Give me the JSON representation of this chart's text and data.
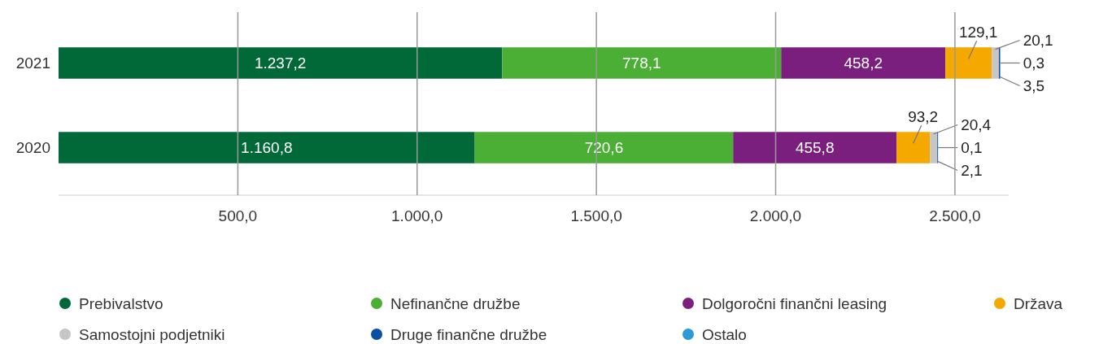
{
  "chart_data": {
    "type": "bar",
    "orientation": "horizontal",
    "stacked": true,
    "categories": [
      "2021",
      "2020"
    ],
    "series": [
      {
        "name": "Prebivalstvo",
        "color": "#006937",
        "values": [
          1237.2,
          1160.8
        ],
        "value_labels": [
          "1.237,2",
          "1.160,8"
        ]
      },
      {
        "name": "Nefinančne družbe",
        "color": "#4caf35",
        "values": [
          778.1,
          720.6
        ],
        "value_labels": [
          "778,1",
          "720,6"
        ]
      },
      {
        "name": "Dolgoročni finančni leasing",
        "color": "#7b1f7f",
        "values": [
          458.2,
          455.8
        ],
        "value_labels": [
          "458,2",
          "455,8"
        ]
      },
      {
        "name": "Država",
        "color": "#f5a800",
        "values": [
          129.1,
          93.2
        ],
        "value_labels": [
          "129,1",
          "93,2"
        ]
      },
      {
        "name": "Samostojni podjetniki",
        "color": "#c6c6c6",
        "values": [
          20.1,
          20.4
        ],
        "value_labels": [
          "20,1",
          "20,4"
        ]
      },
      {
        "name": "Druge finančne družbe",
        "color": "#0b4ea2",
        "values": [
          3.5,
          2.1
        ],
        "value_labels": [
          "3,5",
          "2,1"
        ]
      },
      {
        "name": "Ostalo",
        "color": "#2a9ad8",
        "values": [
          0.3,
          0.1
        ],
        "value_labels": [
          "0,3",
          "0,1"
        ]
      }
    ],
    "xlim": [
      0,
      2650
    ],
    "xticks": [
      {
        "value": 500,
        "label": "500,0"
      },
      {
        "value": 1000,
        "label": "1.000,0"
      },
      {
        "value": 1500,
        "label": "1.500,0"
      },
      {
        "value": 2000,
        "label": "2.000,0"
      },
      {
        "value": 2500,
        "label": "2.500,0"
      }
    ],
    "grid": "x",
    "legend": "bottom"
  }
}
